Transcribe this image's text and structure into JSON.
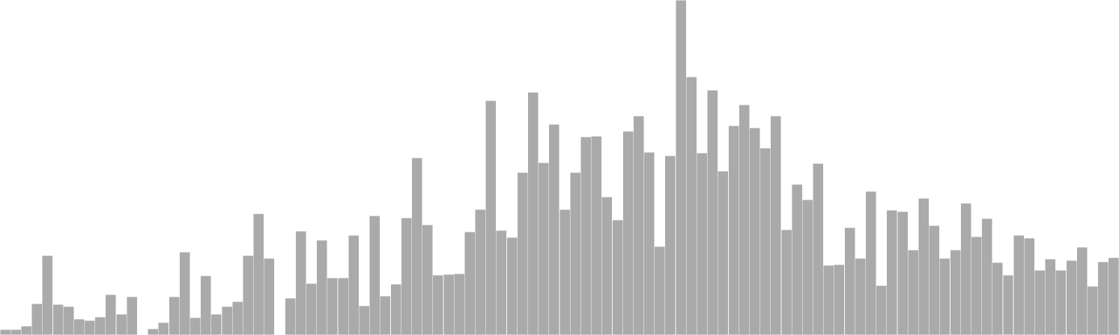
{
  "colors": {
    "bar_fill": "#aaaaaa",
    "bar_stroke": "#ffffff",
    "background": "#ffffff"
  },
  "chart_data": {
    "type": "bar",
    "title": "",
    "xlabel": "",
    "ylabel": "",
    "grid": false,
    "legend": "none",
    "ylim": [
      0,
      480
    ],
    "values": [
      8,
      8,
      13,
      45,
      114,
      44,
      41,
      23,
      21,
      26,
      58,
      30,
      55,
      0,
      9,
      18,
      55,
      119,
      25,
      85,
      30,
      41,
      48,
      114,
      174,
      110,
      0,
      53,
      149,
      74,
      136,
      82,
      82,
      143,
      42,
      171,
      56,
      73,
      168,
      254,
      158,
      86,
      87,
      88,
      148,
      180,
      336,
      150,
      140,
      233,
      348,
      247,
      302,
      180,
      233,
      284,
      285,
      198,
      165,
      292,
      314,
      262,
      127,
      257,
      480,
      370,
      261,
      351,
      235,
      300,
      330,
      297,
      268,
      314,
      151,
      216,
      194,
      246,
      100,
      101,
      154,
      110,
      206,
      71,
      179,
      177,
      122,
      196,
      157,
      110,
      122,
      189,
      141,
      167,
      104,
      86,
      143,
      139,
      93,
      109,
      93,
      107,
      126,
      70,
      105,
      111
    ]
  }
}
